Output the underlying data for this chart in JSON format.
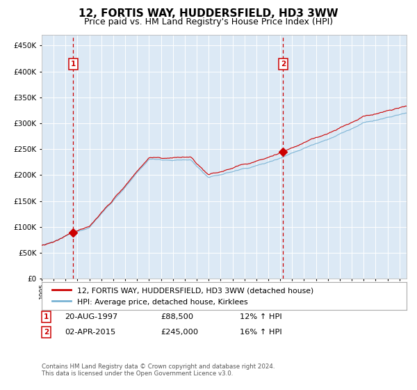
{
  "title": "12, FORTIS WAY, HUDDERSFIELD, HD3 3WW",
  "subtitle": "Price paid vs. HM Land Registry's House Price Index (HPI)",
  "red_label": "12, FORTIS WAY, HUDDERSFIELD, HD3 3WW (detached house)",
  "blue_label": "HPI: Average price, detached house, Kirklees",
  "purchase1_date": "20-AUG-1997",
  "purchase1_price": 88500,
  "purchase1_hpi": "12% ↑ HPI",
  "purchase1_year": 1997.64,
  "purchase2_date": "02-APR-2015",
  "purchase2_price": 245000,
  "purchase2_hpi": "16% ↑ HPI",
  "purchase2_year": 2015.25,
  "footnote1": "Contains HM Land Registry data © Crown copyright and database right 2024.",
  "footnote2": "This data is licensed under the Open Government Licence v3.0.",
  "ylim": [
    0,
    470000
  ],
  "xlim_start": 1995.0,
  "xlim_end": 2025.6,
  "background_color": "#dce9f5",
  "red_color": "#cc0000",
  "blue_color": "#7ab3d4",
  "grid_color": "#ffffff",
  "vline1_color": "#cc0000",
  "vline2_color": "#cc0000",
  "fig_bg": "#ffffff"
}
